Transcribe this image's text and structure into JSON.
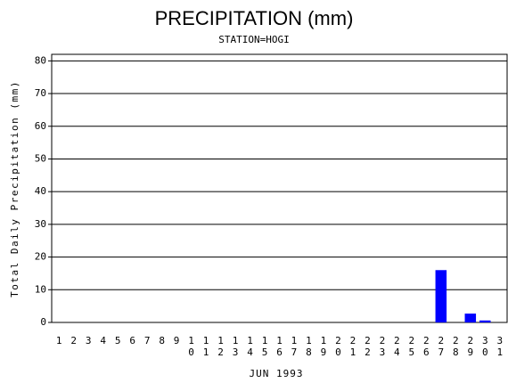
{
  "chart_data": {
    "type": "bar",
    "title": "PRECIPITATION (mm)",
    "subtitle": "STATION=HOGI",
    "x_label": "JUN 1993",
    "y_label": "Total Daily Precipitation (mm)",
    "categories": [
      "1",
      "2",
      "3",
      "4",
      "5",
      "6",
      "7",
      "8",
      "9",
      "10",
      "11",
      "12",
      "13",
      "14",
      "15",
      "16",
      "17",
      "18",
      "19",
      "20",
      "21",
      "22",
      "23",
      "24",
      "25",
      "26",
      "27",
      "28",
      "29",
      "30",
      "31"
    ],
    "values": [
      0,
      0,
      0,
      0,
      0,
      0,
      0,
      0,
      0,
      0,
      0,
      0,
      0,
      0,
      0,
      0,
      0,
      0,
      0,
      0,
      0,
      0,
      0,
      0,
      0,
      0,
      16,
      0,
      2.7,
      0.6,
      0
    ],
    "color": "#0000ff",
    "ylim": [
      0,
      82
    ],
    "yticks": [
      0,
      10,
      20,
      30,
      40,
      50,
      60,
      70,
      80
    ],
    "grid": true
  }
}
